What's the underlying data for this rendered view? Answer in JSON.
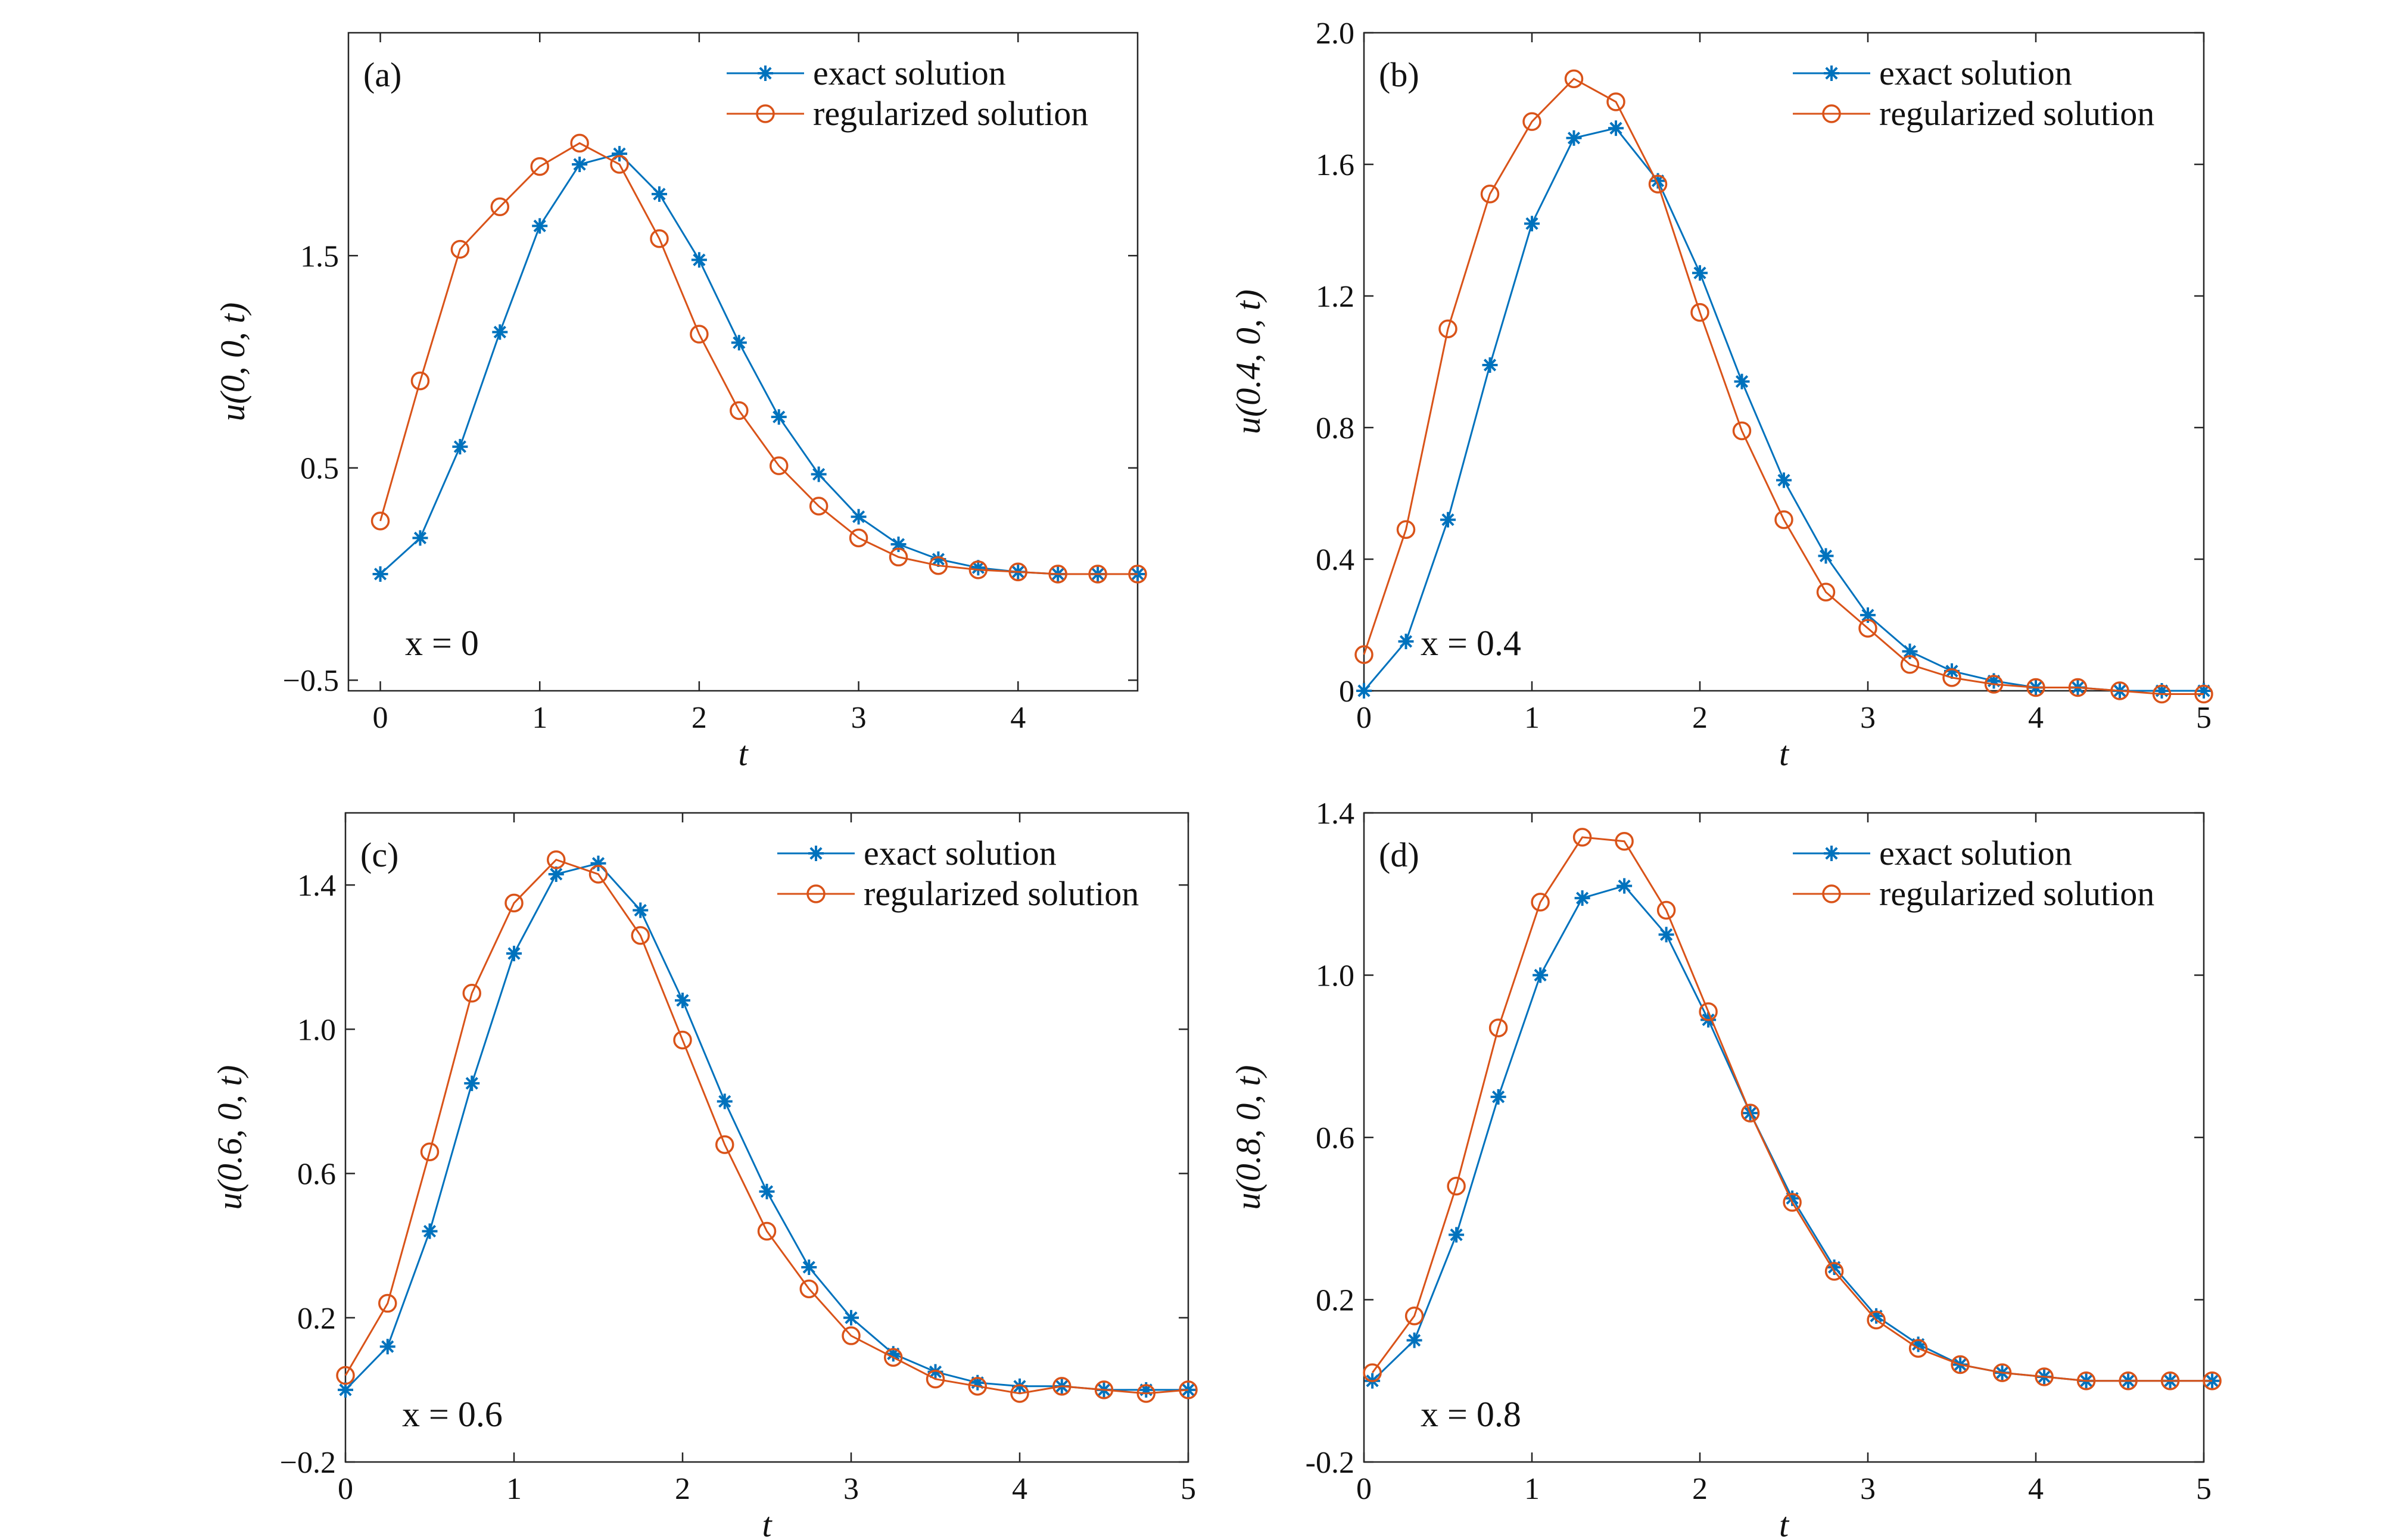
{
  "colors": {
    "exact": "#0072BD",
    "regularized": "#D95319",
    "axis": "#262626"
  },
  "icons": {
    "exact_marker": "asterisk-marker-icon",
    "regularized_marker": "circle-marker-icon"
  },
  "chart_data": [
    {
      "type": "line",
      "panel_label": "(a)",
      "annotation": "x = 0",
      "xlabel": "t",
      "ylabel": "u(0, 0, t)",
      "xlim": [
        -0.2,
        4.75
      ],
      "ylim": [
        -0.55,
        2.55
      ],
      "xticks": [
        0,
        1,
        2,
        3,
        4
      ],
      "yticks": [
        -0.5,
        0.5,
        1.5
      ],
      "ytick_labels": [
        "−0.5",
        "0.5",
        "1.5"
      ],
      "legend": {
        "position": "top-right",
        "entries": [
          "exact solution",
          "regularized solution"
        ]
      },
      "series": [
        {
          "name": "exact solution",
          "marker": "asterisk",
          "x": [
            0,
            0.25,
            0.5,
            0.75,
            1.0,
            1.25,
            1.5,
            1.75,
            2.0,
            2.25,
            2.5,
            2.75,
            3.0,
            3.25,
            3.5,
            3.75,
            4.0,
            4.25,
            4.5,
            4.75
          ],
          "y": [
            0.0,
            0.17,
            0.6,
            1.14,
            1.64,
            1.93,
            1.98,
            1.79,
            1.48,
            1.09,
            0.74,
            0.47,
            0.27,
            0.14,
            0.07,
            0.03,
            0.01,
            0.0,
            0.0,
            0.0
          ]
        },
        {
          "name": "regularized solution",
          "marker": "circle",
          "x": [
            0,
            0.25,
            0.5,
            0.75,
            1.0,
            1.25,
            1.5,
            1.75,
            2.0,
            2.25,
            2.5,
            2.75,
            3.0,
            3.25,
            3.5,
            3.75,
            4.0,
            4.25,
            4.5,
            4.75
          ],
          "y": [
            0.25,
            0.91,
            1.53,
            1.73,
            1.92,
            2.03,
            1.93,
            1.58,
            1.13,
            0.77,
            0.51,
            0.32,
            0.17,
            0.08,
            0.04,
            0.02,
            0.01,
            0.0,
            0.0,
            0.0
          ]
        }
      ]
    },
    {
      "type": "line",
      "panel_label": "(b)",
      "annotation": "x = 0.4",
      "xlabel": "t",
      "ylabel": "u(0.4, 0, t)",
      "xlim": [
        0,
        5
      ],
      "ylim": [
        0,
        2.0
      ],
      "xticks": [
        0,
        1,
        2,
        3,
        4,
        5
      ],
      "yticks": [
        0,
        0.4,
        0.8,
        1.2,
        1.6,
        2.0
      ],
      "ytick_labels": [
        "0",
        "0.4",
        "0.8",
        "1.2",
        "1.6",
        "2.0"
      ],
      "legend": {
        "position": "top-right",
        "entries": [
          "exact solution",
          "regularized solution"
        ]
      },
      "series": [
        {
          "name": "exact solution",
          "marker": "asterisk",
          "x": [
            0,
            0.25,
            0.5,
            0.75,
            1.0,
            1.25,
            1.5,
            1.75,
            2.0,
            2.25,
            2.5,
            2.75,
            3.0,
            3.25,
            3.5,
            3.75,
            4.0,
            4.25,
            4.5,
            4.75,
            5.0
          ],
          "y": [
            0.0,
            0.15,
            0.52,
            0.99,
            1.42,
            1.68,
            1.71,
            1.55,
            1.27,
            0.94,
            0.64,
            0.41,
            0.23,
            0.12,
            0.06,
            0.03,
            0.01,
            0.01,
            0.0,
            0.0,
            0.0
          ]
        },
        {
          "name": "regularized solution",
          "marker": "circle",
          "x": [
            0,
            0.25,
            0.5,
            0.75,
            1.0,
            1.25,
            1.5,
            1.75,
            2.0,
            2.25,
            2.5,
            2.75,
            3.0,
            3.25,
            3.5,
            3.75,
            4.0,
            4.25,
            4.5,
            4.75,
            5.0
          ],
          "y": [
            0.11,
            0.49,
            1.1,
            1.51,
            1.73,
            1.86,
            1.79,
            1.54,
            1.15,
            0.79,
            0.52,
            0.3,
            0.19,
            0.08,
            0.04,
            0.02,
            0.01,
            0.01,
            0.0,
            -0.01,
            -0.01
          ]
        }
      ]
    },
    {
      "type": "line",
      "panel_label": "(c)",
      "annotation": "x = 0.6",
      "xlabel": "t",
      "ylabel": "u(0.6, 0, t)",
      "xlim": [
        0,
        5
      ],
      "ylim": [
        -0.2,
        1.6
      ],
      "xticks": [
        0,
        1,
        2,
        3,
        4,
        5
      ],
      "yticks": [
        -0.2,
        0.2,
        0.6,
        1.0,
        1.4
      ],
      "ytick_labels": [
        "−0.2",
        "0.2",
        "0.6",
        "1.0",
        "1.4"
      ],
      "legend": {
        "position": "top-right",
        "entries": [
          "exact solution",
          "regularized solution"
        ]
      },
      "series": [
        {
          "name": "exact solution",
          "marker": "asterisk",
          "x": [
            0,
            0.25,
            0.5,
            0.75,
            1.0,
            1.25,
            1.5,
            1.75,
            2.0,
            2.25,
            2.5,
            2.75,
            3.0,
            3.25,
            3.5,
            3.75,
            4.0,
            4.25,
            4.5,
            4.75,
            5.0
          ],
          "y": [
            0.0,
            0.12,
            0.44,
            0.85,
            1.21,
            1.43,
            1.46,
            1.33,
            1.08,
            0.8,
            0.55,
            0.34,
            0.2,
            0.1,
            0.05,
            0.02,
            0.01,
            0.01,
            0.0,
            0.0,
            0.0
          ]
        },
        {
          "name": "regularized solution",
          "marker": "circle",
          "x": [
            0,
            0.25,
            0.5,
            0.75,
            1.0,
            1.25,
            1.5,
            1.75,
            2.0,
            2.25,
            2.5,
            2.75,
            3.0,
            3.25,
            3.5,
            3.75,
            4.0,
            4.25,
            4.5,
            4.75,
            5.0
          ],
          "y": [
            0.04,
            0.24,
            0.66,
            1.1,
            1.35,
            1.47,
            1.43,
            1.26,
            0.97,
            0.68,
            0.44,
            0.28,
            0.15,
            0.09,
            0.03,
            0.01,
            -0.01,
            0.01,
            0.0,
            -0.01,
            0.0
          ]
        }
      ]
    },
    {
      "type": "line",
      "panel_label": "(d)",
      "annotation": "x = 0.8",
      "xlabel": "t",
      "ylabel": "u(0.8, 0, t)",
      "xlim": [
        0,
        5
      ],
      "ylim": [
        -0.2,
        1.4
      ],
      "xticks": [
        0,
        1,
        2,
        3,
        4,
        5
      ],
      "yticks": [
        -0.2,
        0.2,
        0.6,
        1.0,
        1.4
      ],
      "ytick_labels": [
        "-0.2",
        "0.2",
        "0.6",
        "1.0",
        "1.4"
      ],
      "legend": {
        "position": "top-right",
        "entries": [
          "exact solution",
          "regularized solution"
        ]
      },
      "series": [
        {
          "name": "exact solution",
          "marker": "asterisk",
          "x": [
            0.05,
            0.3,
            0.55,
            0.8,
            1.05,
            1.3,
            1.55,
            1.8,
            2.05,
            2.3,
            2.55,
            2.8,
            3.05,
            3.3,
            3.55,
            3.8,
            4.05,
            4.3,
            4.55,
            4.8,
            5.05
          ],
          "y": [
            0.0,
            0.1,
            0.36,
            0.7,
            1.0,
            1.19,
            1.22,
            1.1,
            0.89,
            0.66,
            0.45,
            0.28,
            0.16,
            0.09,
            0.04,
            0.02,
            0.01,
            0.0,
            0.0,
            0.0,
            0.0
          ]
        },
        {
          "name": "regularized solution",
          "marker": "circle",
          "x": [
            0.05,
            0.3,
            0.55,
            0.8,
            1.05,
            1.3,
            1.55,
            1.8,
            2.05,
            2.3,
            2.55,
            2.8,
            3.05,
            3.3,
            3.55,
            3.8,
            4.05,
            4.3,
            4.55,
            4.8,
            5.05
          ],
          "y": [
            0.02,
            0.16,
            0.48,
            0.87,
            1.18,
            1.34,
            1.33,
            1.16,
            0.91,
            0.66,
            0.44,
            0.27,
            0.15,
            0.08,
            0.04,
            0.02,
            0.01,
            0.0,
            0.0,
            0.0,
            0.0
          ]
        }
      ]
    }
  ]
}
